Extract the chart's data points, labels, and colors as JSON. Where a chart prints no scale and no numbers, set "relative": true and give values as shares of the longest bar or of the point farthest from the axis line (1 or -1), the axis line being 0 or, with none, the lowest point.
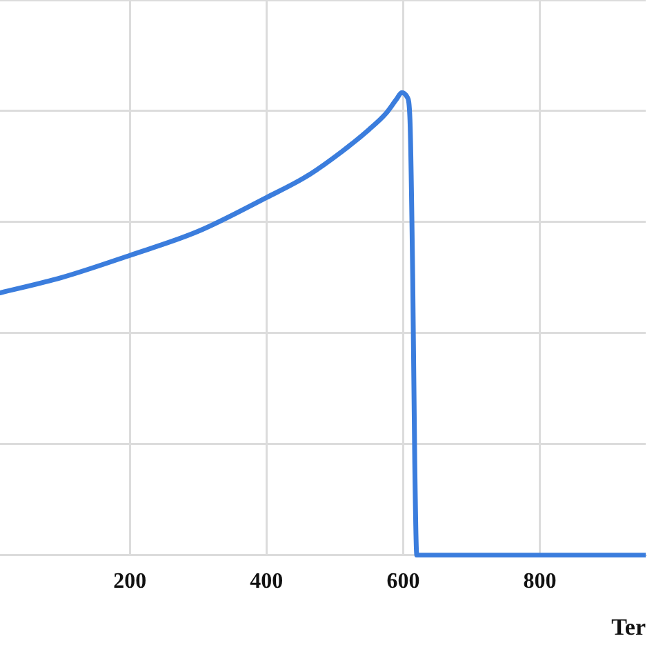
{
  "chart_data": {
    "type": "line",
    "xlabel": "Ter",
    "relative": true,
    "xlim": [
      10,
      955
    ],
    "xticks": [
      200,
      400,
      600,
      800
    ],
    "grid": true,
    "marker": "none",
    "line_style": "solid",
    "legend": false,
    "series": [
      {
        "color": "#3b7ddd",
        "x": [
          10,
          100,
          200,
          300,
          400,
          460,
          510,
          550,
          575,
          590,
          598,
          606,
          610,
          614,
          617,
          620,
          700,
          800,
          955
        ],
        "values": [
          0.567,
          0.6,
          0.648,
          0.7,
          0.773,
          0.82,
          0.872,
          0.92,
          0.955,
          0.985,
          1,
          0.99,
          0.94,
          0.6,
          0.2,
          0,
          0,
          0,
          0
        ]
      }
    ]
  }
}
